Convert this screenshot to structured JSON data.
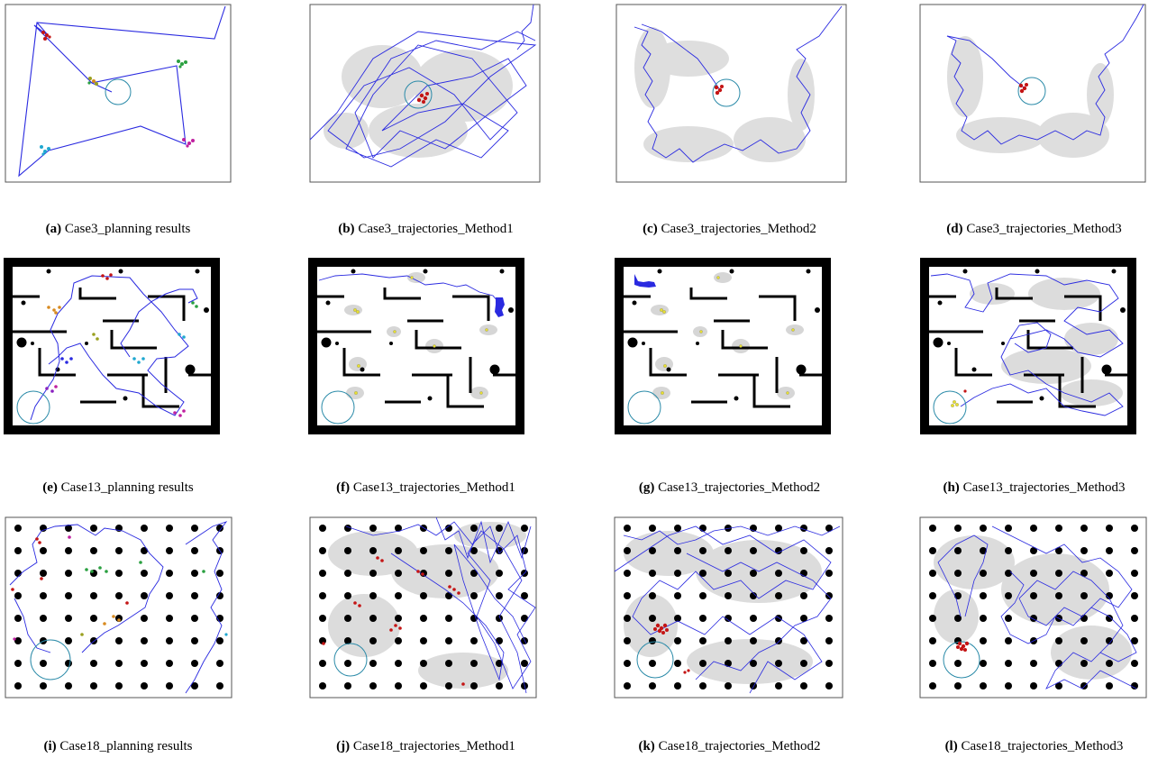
{
  "figure": {
    "rows": [
      [
        {
          "tag": "(a)",
          "text": "Case3_planning results"
        },
        {
          "tag": "(b)",
          "text": "Case3_trajectories_Method1"
        },
        {
          "tag": "(c)",
          "text": "Case3_trajectories_Method2"
        },
        {
          "tag": "(d)",
          "text": "Case3_trajectories_Method3"
        }
      ],
      [
        {
          "tag": "(e)",
          "text": "Case13_planning results"
        },
        {
          "tag": "(f)",
          "text": "Case13_trajectories_Method1"
        },
        {
          "tag": "(g)",
          "text": "Case13_trajectories_Method2"
        },
        {
          "tag": "(h)",
          "text": "Case13_trajectories_Method3"
        }
      ],
      [
        {
          "tag": "(i)",
          "text": "Case18_planning results"
        },
        {
          "tag": "(j)",
          "text": "Case18_trajectories_Method1"
        },
        {
          "tag": "(k)",
          "text": "Case18_trajectories_Method2"
        },
        {
          "tag": "(l)",
          "text": "Case18_trajectories_Method3"
        }
      ]
    ]
  },
  "colors": {
    "trajectory": "#2a2ae0",
    "goal_circle": "#2a8aa8",
    "robots_red": "#c41414",
    "robots_yellow": "#e8e030",
    "uncertainty": "#d6d6d6",
    "obstacle": "#000000",
    "frame": "#555555"
  }
}
